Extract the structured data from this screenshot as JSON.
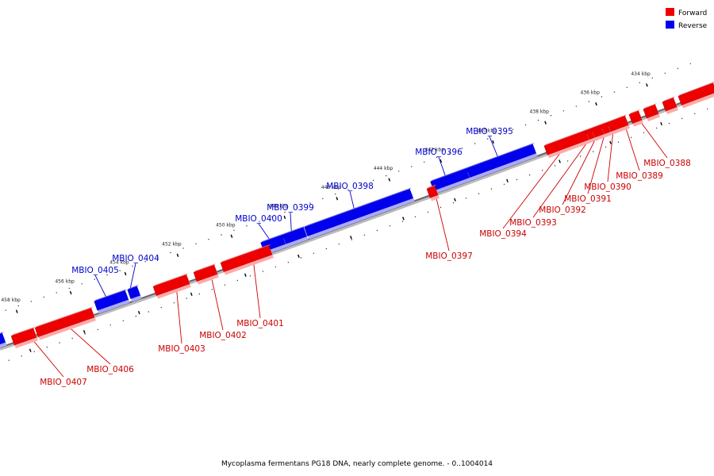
{
  "legend": {
    "forward": {
      "label": "Forward",
      "color": "#ee0000"
    },
    "reverse": {
      "label": "Reverse",
      "color": "#0000ee"
    }
  },
  "caption": "Mycoplasma fermentans PG18 DNA, nearly complete genome. - 0..1004014",
  "ticks": [
    {
      "label": "434 kbp"
    },
    {
      "label": "436 kbp"
    },
    {
      "label": "438 kbp"
    },
    {
      "label": "440 kbp"
    },
    {
      "label": "442 kbp"
    },
    {
      "label": "444 kbp"
    },
    {
      "label": "446 kbp"
    },
    {
      "label": "448 kbp"
    },
    {
      "label": "450 kbp"
    },
    {
      "label": "452 kbp"
    },
    {
      "label": "454 kbp"
    },
    {
      "label": "456 kbp"
    },
    {
      "label": "458 kbp"
    }
  ],
  "genes": [
    {
      "id": "MBIO_0388",
      "strand": "forward"
    },
    {
      "id": "MBIO_0389",
      "strand": "forward"
    },
    {
      "id": "MBIO_0390",
      "strand": "forward"
    },
    {
      "id": "MBIO_0391",
      "strand": "forward"
    },
    {
      "id": "MBIO_0392",
      "strand": "forward"
    },
    {
      "id": "MBIO_0393",
      "strand": "forward"
    },
    {
      "id": "MBIO_0394",
      "strand": "forward"
    },
    {
      "id": "MBIO_0395",
      "strand": "reverse"
    },
    {
      "id": "MBIO_0396",
      "strand": "reverse"
    },
    {
      "id": "MBIO_0397",
      "strand": "forward"
    },
    {
      "id": "MBIO_0398",
      "strand": "reverse"
    },
    {
      "id": "MBIO_0399",
      "strand": "reverse"
    },
    {
      "id": "MBIO_0400",
      "strand": "reverse"
    },
    {
      "id": "MBIO_0401",
      "strand": "forward"
    },
    {
      "id": "MBIO_0402",
      "strand": "forward"
    },
    {
      "id": "MBIO_0403",
      "strand": "forward"
    },
    {
      "id": "MBIO_0404",
      "strand": "reverse"
    },
    {
      "id": "MBIO_0405",
      "strand": "reverse"
    },
    {
      "id": "MBIO_0406",
      "strand": "forward"
    },
    {
      "id": "MBIO_0407",
      "strand": "forward"
    }
  ]
}
